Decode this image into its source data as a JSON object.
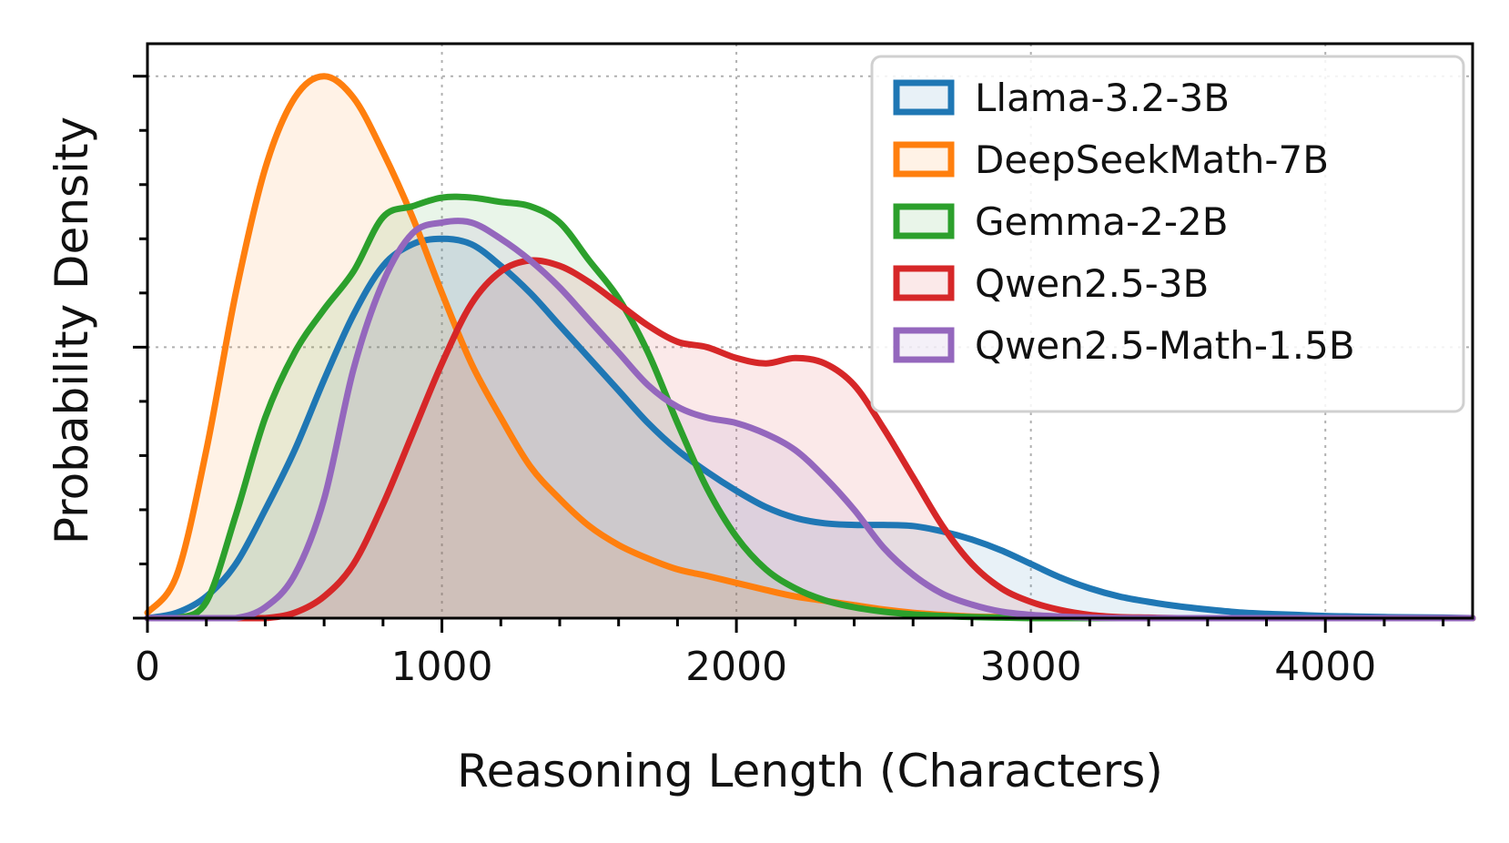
{
  "chart_data": {
    "type": "area",
    "kind": "kde-density",
    "xlabel": "Reasoning Length (Characters)",
    "ylabel": "Probability Density",
    "xlim": [
      0,
      4500
    ],
    "ylim": [
      0,
      1.06
    ],
    "x_ticks": [
      0,
      1000,
      2000,
      3000,
      4000
    ],
    "x_tick_labels": [
      "0",
      "1000",
      "2000",
      "3000",
      "4000"
    ],
    "x_minor_step": 200,
    "y_major_ticks": [
      0.5,
      1.0
    ],
    "y_minor_step": 0.1,
    "y_tick_labels_shown": false,
    "grid": true,
    "legend_position": "top-right",
    "x": [
      0,
      100,
      200,
      300,
      400,
      500,
      600,
      700,
      800,
      900,
      1000,
      1100,
      1200,
      1300,
      1400,
      1500,
      1600,
      1700,
      1800,
      1900,
      2000,
      2100,
      2200,
      2300,
      2400,
      2500,
      2600,
      2700,
      2800,
      2900,
      3000,
      3100,
      3200,
      3300,
      3400,
      3500,
      3600,
      3700,
      3800,
      3900,
      4000,
      4100,
      4200,
      4300,
      4400,
      4500
    ],
    "series": [
      {
        "name": "Llama-3.2-3B",
        "color": "#1f77b4",
        "values": [
          0.0,
          0.01,
          0.04,
          0.1,
          0.2,
          0.31,
          0.44,
          0.56,
          0.65,
          0.69,
          0.7,
          0.69,
          0.65,
          0.6,
          0.54,
          0.48,
          0.42,
          0.36,
          0.31,
          0.27,
          0.235,
          0.205,
          0.185,
          0.175,
          0.172,
          0.172,
          0.17,
          0.16,
          0.145,
          0.125,
          0.1,
          0.075,
          0.055,
          0.04,
          0.03,
          0.022,
          0.016,
          0.011,
          0.008,
          0.006,
          0.004,
          0.003,
          0.002,
          0.0015,
          0.001,
          0.0
        ]
      },
      {
        "name": "DeepSeekMath-7B",
        "color": "#ff7f0e",
        "values": [
          0.01,
          0.08,
          0.31,
          0.6,
          0.83,
          0.96,
          1.0,
          0.96,
          0.86,
          0.74,
          0.6,
          0.47,
          0.37,
          0.28,
          0.22,
          0.17,
          0.135,
          0.11,
          0.09,
          0.078,
          0.065,
          0.052,
          0.04,
          0.032,
          0.024,
          0.016,
          0.01,
          0.006,
          0.003,
          0.002,
          0.001,
          0.0,
          0.0,
          0.0,
          0.0,
          0.0,
          0.0,
          0.0,
          0.0,
          0.0,
          0.0,
          0.0,
          0.0,
          0.0,
          0.0,
          0.0
        ]
      },
      {
        "name": "Gemma-2-2B",
        "color": "#2ca02c",
        "values": [
          0.0,
          0.0,
          0.03,
          0.19,
          0.37,
          0.49,
          0.57,
          0.64,
          0.74,
          0.76,
          0.776,
          0.776,
          0.768,
          0.76,
          0.73,
          0.66,
          0.59,
          0.49,
          0.36,
          0.24,
          0.15,
          0.09,
          0.055,
          0.033,
          0.02,
          0.012,
          0.007,
          0.004,
          0.002,
          0.001,
          0.0,
          0.0,
          0.0,
          0.0,
          0.0,
          0.0,
          0.0,
          0.0,
          0.0,
          0.0,
          0.0,
          0.0,
          0.0,
          0.0,
          0.0,
          0.0
        ]
      },
      {
        "name": "Qwen2.5-3B",
        "color": "#d62728",
        "values": [
          0.0,
          0.0,
          0.0,
          0.0,
          0.0,
          0.01,
          0.04,
          0.1,
          0.21,
          0.34,
          0.47,
          0.58,
          0.64,
          0.66,
          0.65,
          0.62,
          0.58,
          0.54,
          0.51,
          0.5,
          0.48,
          0.47,
          0.48,
          0.47,
          0.43,
          0.35,
          0.26,
          0.17,
          0.1,
          0.055,
          0.03,
          0.015,
          0.006,
          0.002,
          0.001,
          0.0,
          0.0,
          0.0,
          0.0,
          0.0,
          0.0,
          0.0,
          0.0,
          0.0,
          0.0,
          0.0
        ]
      },
      {
        "name": "Qwen2.5-Math-1.5B",
        "color": "#9467bd",
        "values": [
          0.0,
          0.0,
          0.0,
          0.0,
          0.02,
          0.08,
          0.22,
          0.46,
          0.62,
          0.71,
          0.73,
          0.73,
          0.7,
          0.66,
          0.61,
          0.55,
          0.49,
          0.43,
          0.39,
          0.37,
          0.36,
          0.34,
          0.31,
          0.26,
          0.2,
          0.13,
          0.08,
          0.045,
          0.025,
          0.012,
          0.006,
          0.003,
          0.001,
          0.0,
          0.0,
          0.0,
          0.0,
          0.0,
          0.0,
          0.0,
          0.0,
          0.0,
          0.0,
          0.0,
          0.0,
          0.0
        ]
      }
    ]
  }
}
